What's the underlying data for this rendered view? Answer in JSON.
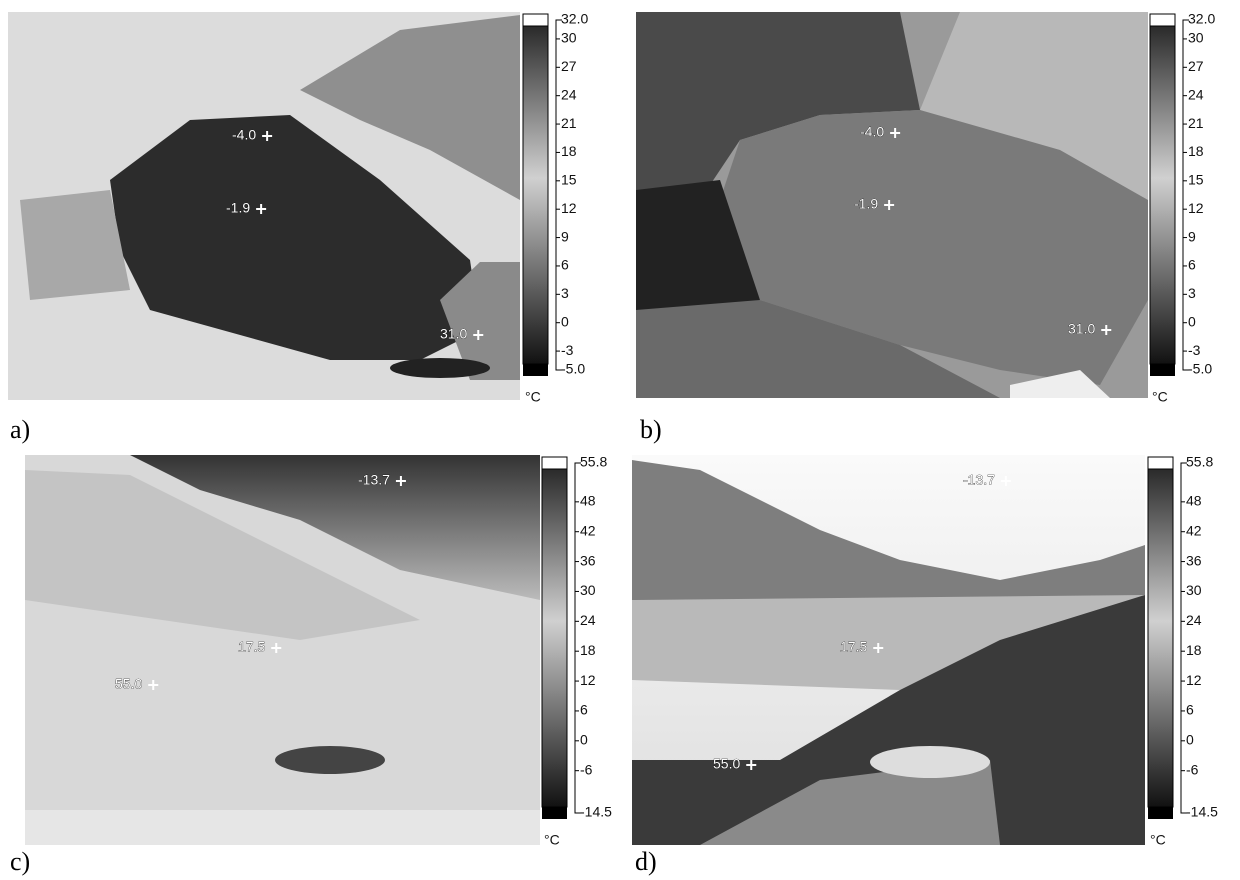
{
  "panels": [
    {
      "label": "a)",
      "scale": {
        "ticks": [
          "32.0",
          "30",
          "27",
          "24",
          "21",
          "18",
          "15",
          "12",
          "9",
          "6",
          "3",
          "0",
          "-3",
          "-5.0"
        ],
        "unit": "°C"
      },
      "spots": [
        "-4.0",
        "-1.9",
        "31.0"
      ]
    },
    {
      "label": "b)",
      "scale": {
        "ticks": [
          "32.0",
          "30",
          "27",
          "24",
          "21",
          "18",
          "15",
          "12",
          "9",
          "6",
          "3",
          "0",
          "-3",
          "-5.0"
        ],
        "unit": "°C"
      },
      "spots": [
        "-4.0",
        "-1.9",
        "31.0"
      ]
    },
    {
      "label": "c)",
      "scale": {
        "ticks": [
          "55.8",
          "48",
          "42",
          "36",
          "30",
          "24",
          "18",
          "12",
          "6",
          "0",
          "-6",
          "-14.5"
        ],
        "unit": "°C"
      },
      "spots": [
        "-13.7",
        "17.5",
        "55.0"
      ]
    },
    {
      "label": "d)",
      "scale": {
        "ticks": [
          "55.8",
          "48",
          "42",
          "36",
          "30",
          "24",
          "18",
          "12",
          "6",
          "0",
          "-6",
          "-14.5"
        ],
        "unit": "°C"
      },
      "spots": [
        "-13.7",
        "17.5",
        "55.0"
      ]
    }
  ]
}
